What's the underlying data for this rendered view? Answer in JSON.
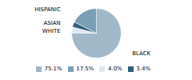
{
  "chart_data": {
    "type": "pie",
    "categories": [
      "BLACK",
      "WHITE",
      "ASIAN",
      "HISPANIC"
    ],
    "values": [
      75.1,
      4.0,
      3.4,
      17.5
    ],
    "value_labels": [
      "75.1%",
      "4.0%",
      "3.4%",
      "17.5%"
    ],
    "colors": [
      "#a0b8c8",
      "#dce8ef",
      "#2e5f7a",
      "#7a9fb5"
    ],
    "legend": "bottom"
  }
}
